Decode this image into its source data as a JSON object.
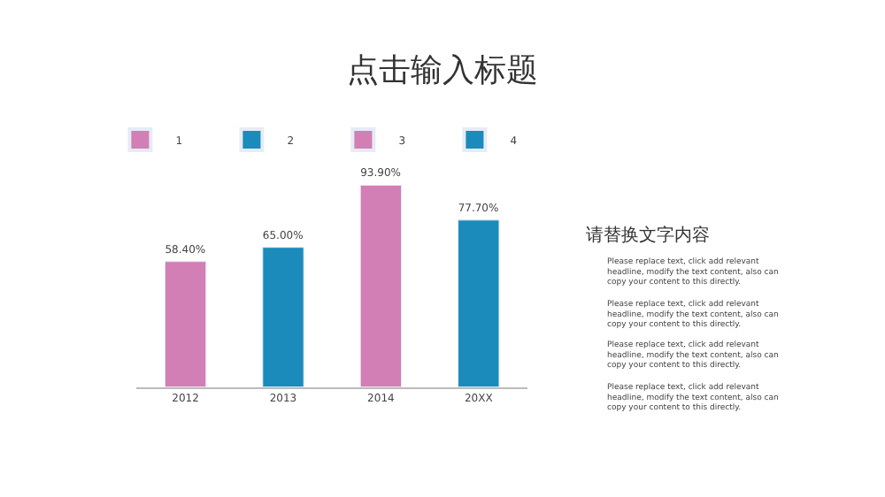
{
  "chart_data": {
    "type": "bar",
    "title": "点击输入标题",
    "categories": [
      "2012",
      "2013",
      "2014",
      "20XX"
    ],
    "series": [
      {
        "name": "1",
        "color": "#d17fb4",
        "values": [
          58.4,
          null,
          null,
          null
        ],
        "value_labels": [
          "58.40%",
          null,
          null,
          null
        ]
      },
      {
        "name": "2",
        "color": "#1a8bba",
        "values": [
          null,
          65.0,
          null,
          null
        ],
        "value_labels": [
          null,
          "65.00%",
          null,
          null
        ]
      },
      {
        "name": "3",
        "color": "#d17fb4",
        "values": [
          null,
          null,
          93.9,
          null
        ],
        "value_labels": [
          null,
          null,
          "93.90%",
          null
        ]
      },
      {
        "name": "4",
        "color": "#1a8bba",
        "values": [
          null,
          null,
          null,
          77.7
        ],
        "value_labels": [
          null,
          null,
          null,
          "77.70%"
        ]
      }
    ],
    "legend": "top",
    "annotations": [
      "请替换文字内容",
      "Please replace text, click add relevant headline, modify the text content, also can copy your content to this directly.",
      "Please replace text, click add relevant headline, modify the text content, also can copy your content to this directly.",
      "Please replace text, click add relevant headline, modify the text content, also can copy your content to this directly.",
      "Please replace text, click add relevant headline, modify the text content, also can copy your content to this directly."
    ]
  }
}
